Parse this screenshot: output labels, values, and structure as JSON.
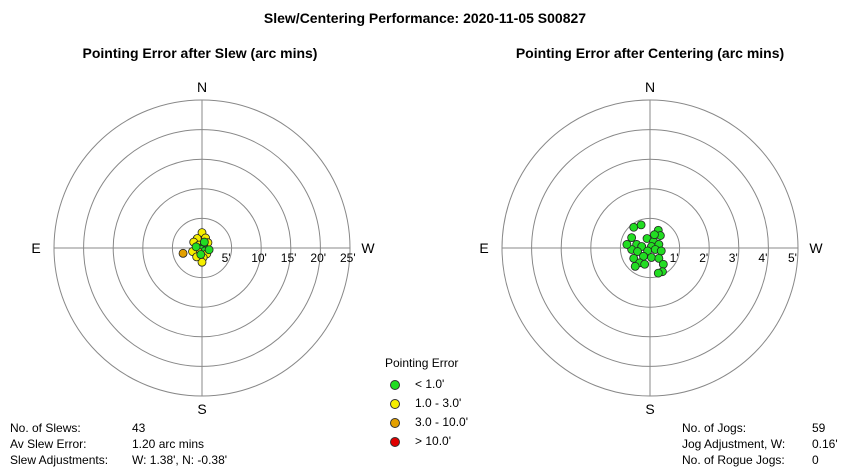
{
  "title": "Slew/Centering Performance: 2020-11-05 S00827",
  "colors": {
    "lt1": "#22dd22",
    "1to3": "#f5ee00",
    "3to10": "#e3a000",
    "gt10": "#e00000",
    "ring": "#888888"
  },
  "chart_data": [
    {
      "type": "scatter",
      "title": "Pointing Error after Slew (arc mins)",
      "compass": {
        "N": "N",
        "S": "S",
        "E": "E",
        "W": "W"
      },
      "ring_labels": [
        "5'",
        "10'",
        "15'",
        "20'",
        "25'"
      ],
      "ring_values": [
        5,
        10,
        15,
        20,
        25
      ],
      "points": [
        {
          "x": 0.0,
          "y": 2.6,
          "cat": "1to3"
        },
        {
          "x": -0.8,
          "y": 1.6,
          "cat": "1to3"
        },
        {
          "x": 0.6,
          "y": 1.7,
          "cat": "1to3"
        },
        {
          "x": 1.0,
          "y": 0.9,
          "cat": "1to3"
        },
        {
          "x": -1.4,
          "y": 1.0,
          "cat": "1to3"
        },
        {
          "x": -0.5,
          "y": 0.5,
          "cat": "1to3"
        },
        {
          "x": 0.3,
          "y": 0.4,
          "cat": "lt1"
        },
        {
          "x": -0.2,
          "y": -0.2,
          "cat": "lt1"
        },
        {
          "x": 0.5,
          "y": -0.5,
          "cat": "lt1"
        },
        {
          "x": -0.6,
          "y": -0.7,
          "cat": "1to3"
        },
        {
          "x": 0.8,
          "y": -1.0,
          "cat": "1to3"
        },
        {
          "x": -1.6,
          "y": -0.6,
          "cat": "1to3"
        },
        {
          "x": 0.2,
          "y": -1.6,
          "cat": "1to3"
        },
        {
          "x": 0.0,
          "y": -2.4,
          "cat": "1to3"
        },
        {
          "x": -0.9,
          "y": -1.5,
          "cat": "1to3"
        },
        {
          "x": 1.2,
          "y": -0.3,
          "cat": "lt1"
        },
        {
          "x": -1.0,
          "y": 0.2,
          "cat": "lt1"
        },
        {
          "x": 0.4,
          "y": 1.0,
          "cat": "lt1"
        },
        {
          "x": -0.2,
          "y": -1.1,
          "cat": "lt1"
        },
        {
          "x": -3.2,
          "y": -0.9,
          "cat": "3to10"
        }
      ]
    },
    {
      "type": "scatter",
      "title": "Pointing Error after Centering (arc mins)",
      "compass": {
        "N": "N",
        "S": "S",
        "E": "E",
        "W": "W"
      },
      "ring_labels": [
        "1'",
        "2'",
        "3'",
        "4'",
        "5'"
      ],
      "ring_values": [
        1,
        2,
        3,
        4,
        5
      ],
      "points": [
        {
          "x": -0.55,
          "y": 0.7,
          "cat": "lt1"
        },
        {
          "x": -0.3,
          "y": 0.78,
          "cat": "lt1"
        },
        {
          "x": 0.28,
          "y": 0.6,
          "cat": "lt1"
        },
        {
          "x": 0.35,
          "y": 0.42,
          "cat": "lt1"
        },
        {
          "x": -0.62,
          "y": 0.35,
          "cat": "lt1"
        },
        {
          "x": -0.1,
          "y": 0.32,
          "cat": "lt1"
        },
        {
          "x": 0.12,
          "y": 0.22,
          "cat": "lt1"
        },
        {
          "x": -0.45,
          "y": 0.12,
          "cat": "lt1"
        },
        {
          "x": -0.28,
          "y": 0.05,
          "cat": "lt1"
        },
        {
          "x": 0.05,
          "y": 0.05,
          "cat": "lt1"
        },
        {
          "x": 0.3,
          "y": 0.12,
          "cat": "lt1"
        },
        {
          "x": -0.62,
          "y": -0.05,
          "cat": "lt1"
        },
        {
          "x": -0.42,
          "y": -0.12,
          "cat": "lt1"
        },
        {
          "x": -0.08,
          "y": -0.1,
          "cat": "lt1"
        },
        {
          "x": 0.18,
          "y": -0.05,
          "cat": "lt1"
        },
        {
          "x": 0.38,
          "y": -0.1,
          "cat": "lt1"
        },
        {
          "x": -0.22,
          "y": -0.28,
          "cat": "lt1"
        },
        {
          "x": 0.05,
          "y": -0.32,
          "cat": "lt1"
        },
        {
          "x": -0.55,
          "y": -0.35,
          "cat": "lt1"
        },
        {
          "x": 0.3,
          "y": -0.35,
          "cat": "lt1"
        },
        {
          "x": -0.35,
          "y": -0.5,
          "cat": "lt1"
        },
        {
          "x": 0.45,
          "y": -0.55,
          "cat": "lt1"
        },
        {
          "x": -0.5,
          "y": -0.62,
          "cat": "lt1"
        },
        {
          "x": 0.42,
          "y": -0.8,
          "cat": "lt1"
        },
        {
          "x": 0.28,
          "y": -0.85,
          "cat": "lt1"
        },
        {
          "x": -0.18,
          "y": -0.55,
          "cat": "lt1"
        },
        {
          "x": 0.15,
          "y": 0.45,
          "cat": "lt1"
        },
        {
          "x": -0.78,
          "y": 0.12,
          "cat": "lt1"
        }
      ]
    }
  ],
  "legend": {
    "title": "Pointing Error",
    "items": [
      {
        "label": "< 1.0'",
        "cat": "lt1"
      },
      {
        "label": "1.0 - 3.0'",
        "cat": "1to3"
      },
      {
        "label": "3.0 - 10.0'",
        "cat": "3to10"
      },
      {
        "label": "> 10.0'",
        "cat": "gt10"
      }
    ]
  },
  "slew_stats": [
    {
      "label": "No. of Slews:",
      "value": "43"
    },
    {
      "label": "Av Slew Error:",
      "value": "1.20 arc mins"
    },
    {
      "label": "Slew Adjustments:",
      "value": "W: 1.38', N: -0.38'"
    }
  ],
  "jog_stats": [
    {
      "label": "No. of Jogs:",
      "value": "59"
    },
    {
      "label": "Jog Adjustment, W:",
      "value": "0.16'"
    },
    {
      "label": "No. of Rogue Jogs:",
      "value": "0"
    }
  ]
}
